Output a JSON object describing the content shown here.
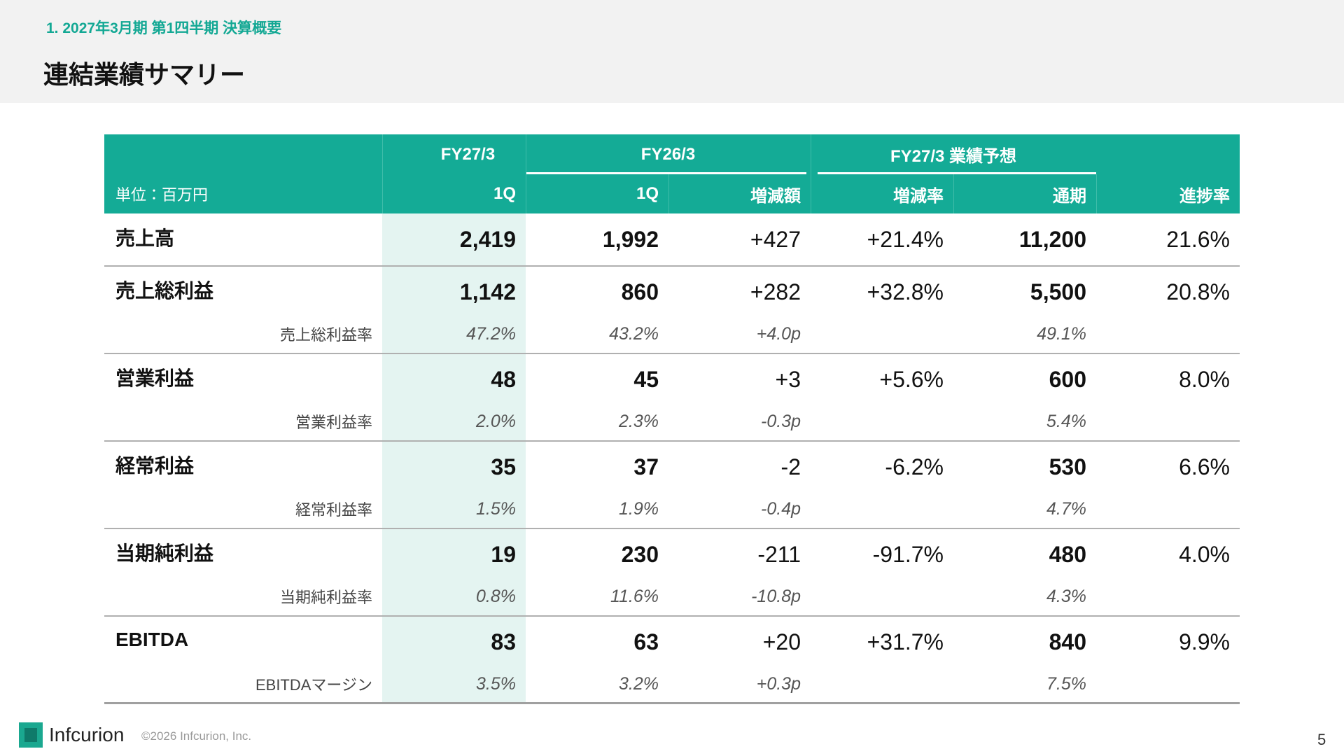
{
  "header": {
    "section": "1. 2027年3月期 第1四半期 決算概要",
    "title": "連結業績サマリー"
  },
  "table": {
    "unit": "単位：百万円",
    "group_headers": [
      "FY27/3",
      "FY26/3",
      "FY27/3 業績予想"
    ],
    "columns": [
      "1Q",
      "1Q",
      "増減額",
      "増減率",
      "通期",
      "進捗率"
    ],
    "rows": [
      {
        "label": "売上高",
        "values": [
          "2,419",
          "1,992",
          "+427",
          "+21.4%",
          "11,200",
          "21.6%"
        ]
      },
      {
        "label": "売上総利益",
        "values": [
          "1,142",
          "860",
          "+282",
          "+32.8%",
          "5,500",
          "20.8%"
        ],
        "sub_label": "売上総利益率",
        "sub_values": [
          "47.2%",
          "43.2%",
          "+4.0p",
          null,
          "49.1%",
          null
        ]
      },
      {
        "label": "営業利益",
        "values": [
          "48",
          "45",
          "+3",
          "+5.6%",
          "600",
          "8.0%"
        ],
        "sub_label": "営業利益率",
        "sub_values": [
          "2.0%",
          "2.3%",
          "-0.3p",
          null,
          "5.4%",
          null
        ]
      },
      {
        "label": "経常利益",
        "values": [
          "35",
          "37",
          "-2",
          "-6.2%",
          "530",
          "6.6%"
        ],
        "sub_label": "経常利益率",
        "sub_values": [
          "1.5%",
          "1.9%",
          "-0.4p",
          null,
          "4.7%",
          null
        ]
      },
      {
        "label": "当期純利益",
        "values": [
          "19",
          "230",
          "-211",
          "-91.7%",
          "480",
          "4.0%"
        ],
        "sub_label": "当期純利益率",
        "sub_values": [
          "0.8%",
          "11.6%",
          "-10.8p",
          null,
          "4.3%",
          null
        ]
      },
      {
        "label": "EBITDA",
        "values": [
          "83",
          "63",
          "+20",
          "+31.7%",
          "840",
          "9.9%"
        ],
        "sub_label": "EBITDAマージン",
        "sub_values": [
          "3.5%",
          "3.2%",
          "+0.3p",
          null,
          "7.5%",
          null
        ]
      }
    ]
  },
  "footer": {
    "company": "Infcurion",
    "copyright": "©2026 Infcurion, Inc.",
    "page": "5"
  }
}
